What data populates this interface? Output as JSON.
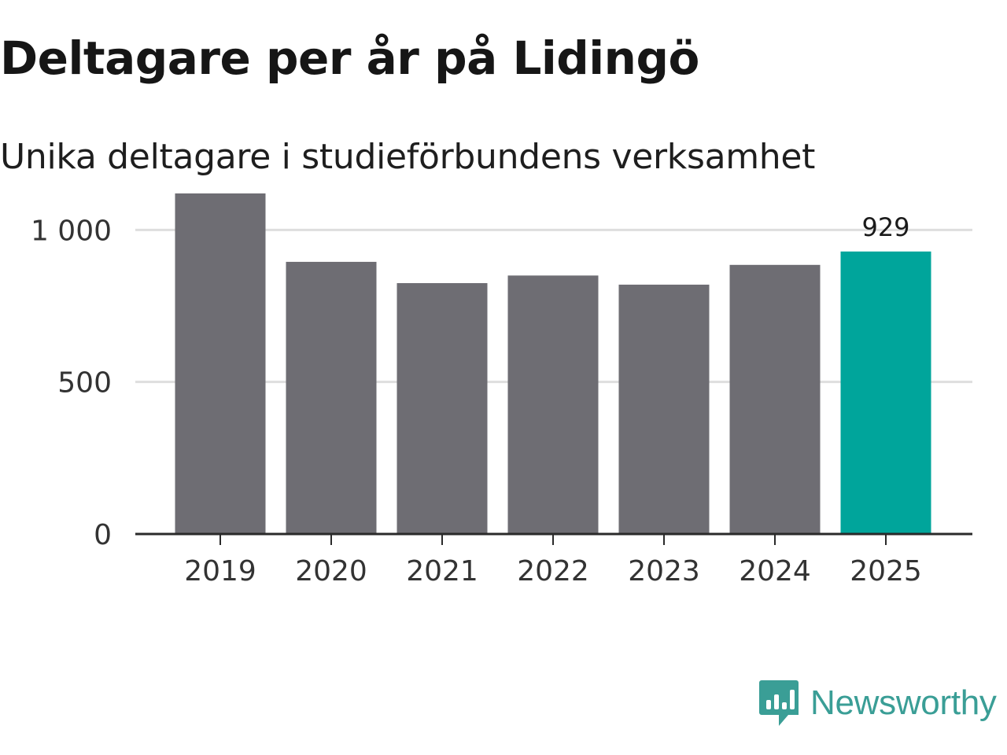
{
  "chart_data": {
    "type": "bar",
    "title": "Deltagare per år på Lidingö",
    "subtitle": "Unika deltagare i studieförbundens verksamhet",
    "categories": [
      "2019",
      "2020",
      "2021",
      "2022",
      "2023",
      "2024",
      "2025"
    ],
    "values": [
      1120,
      895,
      825,
      850,
      820,
      885,
      929
    ],
    "highlight_index": 6,
    "highlight_label": "929",
    "ylim": [
      0,
      1200
    ],
    "yticks": [
      0,
      500,
      1000
    ],
    "ytick_labels": [
      "0",
      "500",
      "1 000"
    ],
    "xlabel": "",
    "ylabel": "",
    "grid": true,
    "colors": {
      "bar": "#6e6d73",
      "highlight": "#00a59b",
      "grid": "#dedede",
      "axis": "#2a2a2a",
      "tick_text": "#333333"
    }
  },
  "brand": {
    "name": "Newsworthy",
    "color": "#3a9e96",
    "icon": "newsworthy-logo-icon"
  }
}
